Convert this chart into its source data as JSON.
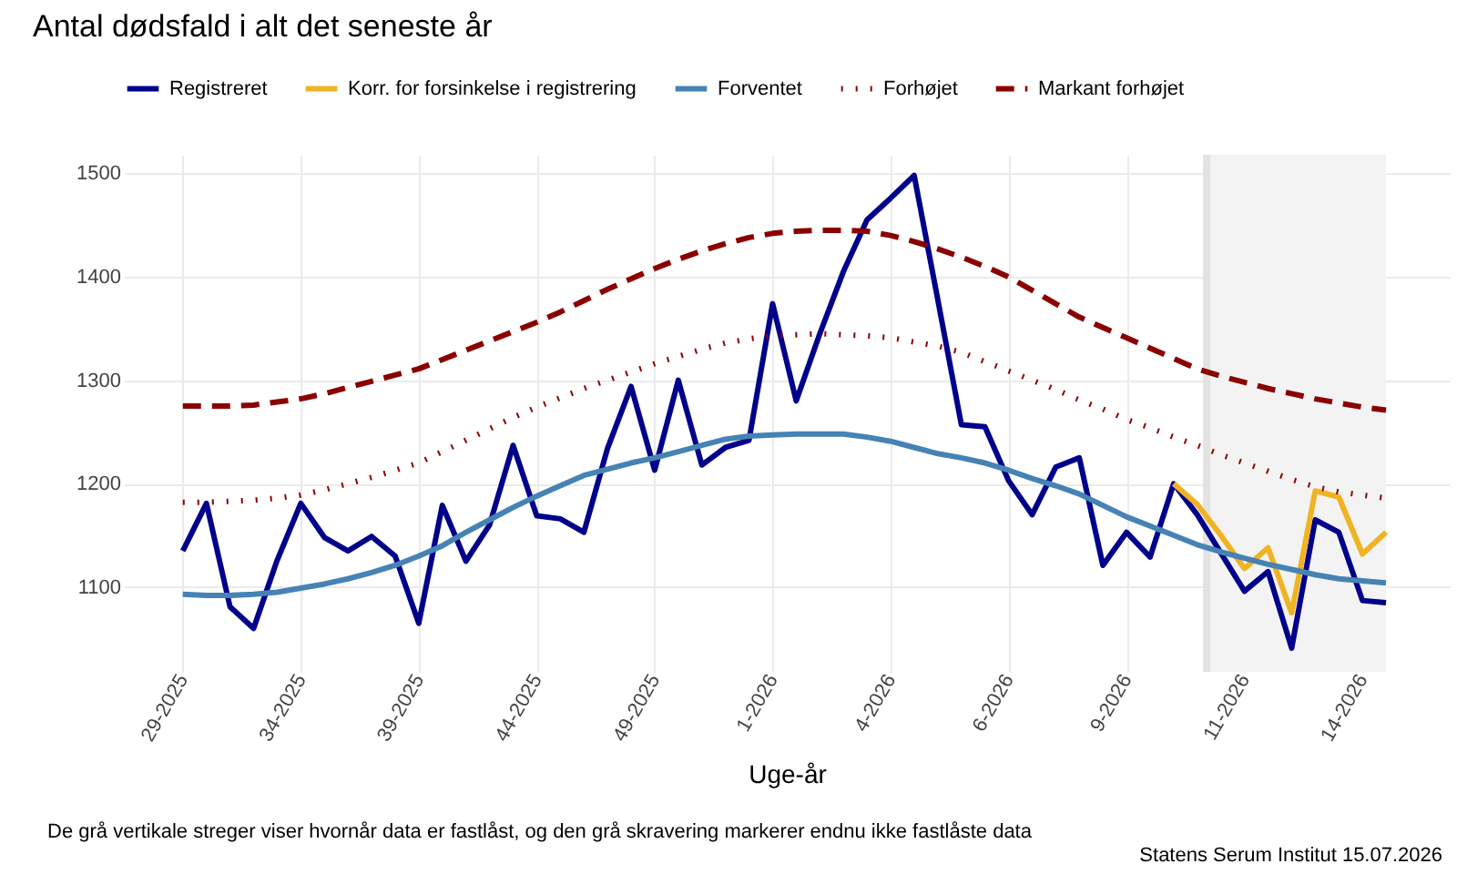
{
  "chart_data": {
    "type": "line",
    "title": "Antal dødsfald i alt det seneste år",
    "xlabel": "Uge-år",
    "annotations": [
      "De grå vertikale streger viser hvornår data er fastlåst, og den grå skravering markerer endnu ikke fastlåste data",
      "Statens Serum Institut  15.07.2026"
    ],
    "categories": [
      "29-2025",
      null,
      null,
      null,
      null,
      "34-2025",
      null,
      null,
      null,
      null,
      "39-2025",
      null,
      null,
      null,
      null,
      "44-2025",
      null,
      null,
      null,
      null,
      "49-2025",
      null,
      null,
      null,
      null,
      "1-2026",
      null,
      null,
      null,
      null,
      "4-2026",
      null,
      null,
      null,
      null,
      "6-2026",
      null,
      null,
      null,
      null,
      "9-2026",
      null,
      null,
      null,
      null,
      "11-2026",
      null,
      null,
      null,
      null,
      "14-2026",
      null
    ],
    "series": [
      {
        "name": "Registreret",
        "color": "#00008b",
        "line_style": "solid",
        "values": [
          1135,
          1181,
          1081,
          1060,
          1126,
          1181,
          1148,
          1135,
          1149,
          1130,
          1065,
          1179,
          1125,
          1160,
          1237,
          1169,
          1166,
          1153,
          1234,
          1294,
          1213,
          1300,
          1218,
          1235,
          1242,
          1374,
          1280,
          1345,
          1405,
          1455,
          1476,
          1498,
          1378,
          1257,
          1255,
          1203,
          1170,
          1216,
          1225,
          1121,
          1153,
          1129,
          1200,
          1170,
          1133,
          1096,
          1115,
          1041,
          1165,
          1153,
          1087,
          1085
        ]
      },
      {
        "name": "Korr. for forsinkelse i registrering",
        "color": "#f0b323",
        "line_style": "solid",
        "values": [
          null,
          null,
          null,
          null,
          null,
          null,
          null,
          null,
          null,
          null,
          null,
          null,
          null,
          null,
          null,
          null,
          null,
          null,
          null,
          null,
          null,
          null,
          null,
          null,
          null,
          null,
          null,
          null,
          null,
          null,
          null,
          null,
          null,
          null,
          null,
          null,
          null,
          null,
          null,
          null,
          null,
          null,
          1200,
          1180,
          1150,
          1118,
          1138,
          1075,
          1193,
          1187,
          1132,
          1153
        ]
      },
      {
        "name": "Forventet",
        "color": "#4682b4",
        "line_style": "solid",
        "values": [
          1093,
          1092,
          1092,
          1093,
          1095,
          1099,
          1103,
          1108,
          1114,
          1121,
          1130,
          1140,
          1153,
          1165,
          1177,
          1188,
          1198,
          1208,
          1214,
          1220,
          1225,
          1231,
          1237,
          1243,
          1246,
          1247,
          1248,
          1248,
          1248,
          1245,
          1241,
          1235,
          1229,
          1225,
          1220,
          1213,
          1205,
          1198,
          1190,
          1179,
          1168,
          1159,
          1150,
          1141,
          1134,
          1128,
          1122,
          1117,
          1112,
          1108,
          1106,
          1104
        ]
      },
      {
        "name": "Forhøjet",
        "color": "#8b0000",
        "line_style": "dotted",
        "values": [
          1182,
          1182,
          1183,
          1184,
          1186,
          1189,
          1194,
          1200,
          1206,
          1213,
          1220,
          1231,
          1242,
          1253,
          1264,
          1274,
          1283,
          1292,
          1300,
          1308,
          1316,
          1323,
          1330,
          1336,
          1340,
          1343,
          1344,
          1345,
          1344,
          1343,
          1341,
          1337,
          1333,
          1327,
          1318,
          1309,
          1300,
          1291,
          1281,
          1272,
          1262,
          1254,
          1245,
          1237,
          1228,
          1220,
          1212,
          1204,
          1197,
          1192,
          1189,
          1186
        ]
      },
      {
        "name": "Markant forhøjet",
        "color": "#8b0000",
        "line_style": "dashed",
        "values": [
          1275,
          1275,
          1275,
          1276,
          1279,
          1282,
          1287,
          1293,
          1299,
          1305,
          1311,
          1320,
          1329,
          1338,
          1347,
          1356,
          1366,
          1377,
          1388,
          1398,
          1408,
          1417,
          1425,
          1432,
          1438,
          1442,
          1444,
          1445,
          1445,
          1444,
          1440,
          1434,
          1427,
          1419,
          1410,
          1400,
          1387,
          1374,
          1361,
          1351,
          1341,
          1331,
          1321,
          1311,
          1304,
          1298,
          1292,
          1287,
          1282,
          1278,
          1274,
          1271
        ]
      }
    ],
    "ylim": [
      1018,
      1518
    ],
    "yticks": [
      1100,
      1200,
      1300,
      1400,
      1500
    ],
    "grid": true,
    "legend": "top"
  }
}
